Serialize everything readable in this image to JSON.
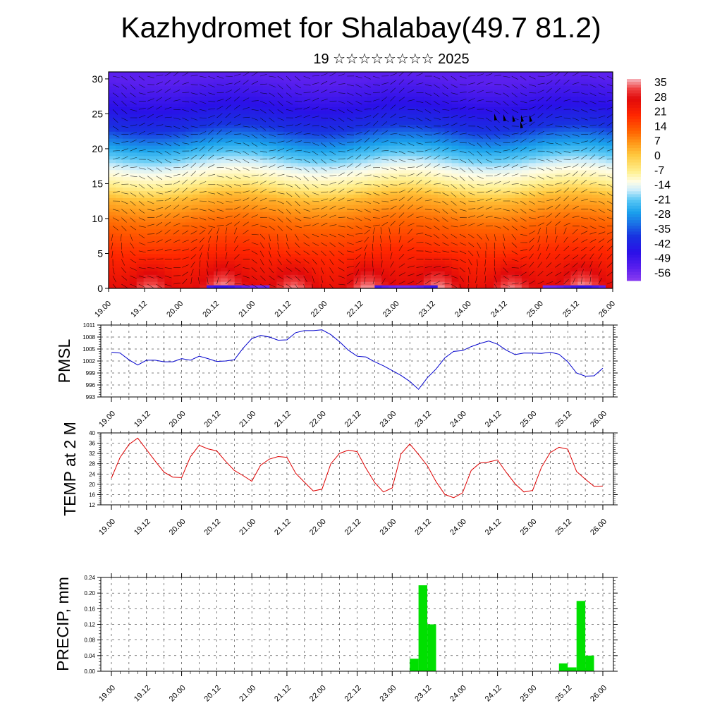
{
  "title": "Kazhydromet for Shalabay(49.7 81.2)",
  "subtitle": "19 ☆☆☆☆☆☆☆☆ 2025",
  "x_tick_labels": [
    "19.00",
    "19.12",
    "20.00",
    "20.12",
    "21.00",
    "21.12",
    "22.00",
    "22.12",
    "23.00",
    "23.12",
    "24.00",
    "24.12",
    "25.00",
    "25.12",
    "26.00"
  ],
  "colors": {
    "pmsl_line": "#0000cc",
    "temp_line": "#dd0000",
    "precip_bar": "#00e000",
    "grid": "#000000"
  },
  "chart_data": [
    {
      "type": "heatmap",
      "title": "",
      "ylabel": "",
      "ylim": [
        0,
        30
      ],
      "y_ticks": [
        0,
        5,
        10,
        15,
        20,
        25,
        30
      ],
      "x_range": [
        0,
        168
      ],
      "colorbar": {
        "labels": [
          "35",
          "28",
          "21",
          "14",
          "7",
          "0",
          "-7",
          "-14",
          "-21",
          "-28",
          "-35",
          "-42",
          "-49",
          "-56"
        ],
        "stops": [
          {
            "v": 38,
            "c": "#f6b8c0"
          },
          {
            "v": 33,
            "c": "#ef4040"
          },
          {
            "v": 28,
            "c": "#e10a0a"
          },
          {
            "v": 20,
            "c": "#ff2600"
          },
          {
            "v": 12,
            "c": "#ff6200"
          },
          {
            "v": 6,
            "c": "#ff9a1a"
          },
          {
            "v": 0,
            "c": "#ffc940"
          },
          {
            "v": -8,
            "c": "#fff090"
          },
          {
            "v": -13,
            "c": "#fffde6"
          },
          {
            "v": -17,
            "c": "#cfeefa"
          },
          {
            "v": -22,
            "c": "#5ac8f5"
          },
          {
            "v": -28,
            "c": "#1aa2ec"
          },
          {
            "v": -34,
            "c": "#1a6fe6"
          },
          {
            "v": -40,
            "c": "#1833e0"
          },
          {
            "v": -48,
            "c": "#2a10e8"
          },
          {
            "v": -56,
            "c": "#5b20ee"
          },
          {
            "v": -62,
            "c": "#8a3cf0"
          }
        ]
      },
      "temperature_profile_by_height": [
        {
          "h": 0,
          "t": 30
        },
        {
          "h": 5,
          "t": 20
        },
        {
          "h": 10,
          "t": 10
        },
        {
          "h": 13,
          "t": 2
        },
        {
          "h": 15,
          "t": -8
        },
        {
          "h": 17,
          "t": -14
        },
        {
          "h": 20,
          "t": -26
        },
        {
          "h": 23,
          "t": -40
        },
        {
          "h": 26,
          "t": -48
        },
        {
          "h": 30,
          "t": -56
        }
      ]
    },
    {
      "type": "line",
      "series_label": "PMSL",
      "ylabel": "PMSL",
      "ylim": [
        993,
        1011
      ],
      "y_ticks": [
        993,
        996,
        999,
        1002,
        1005,
        1008,
        1011
      ],
      "x": [
        0,
        3,
        6,
        9,
        12,
        15,
        18,
        21,
        24,
        27,
        30,
        33,
        36,
        39,
        42,
        45,
        48,
        51,
        54,
        57,
        60,
        63,
        66,
        69,
        72,
        75,
        78,
        81,
        84,
        87,
        90,
        93,
        96,
        99,
        102,
        105,
        108,
        111,
        114,
        117,
        120,
        123,
        126,
        129,
        132,
        135,
        138,
        141,
        144,
        147,
        150,
        153,
        156,
        159,
        162,
        165,
        168
      ],
      "values": [
        1004.2,
        1004,
        1002.3,
        1001,
        1002.2,
        1002.2,
        1001.8,
        1001.8,
        1002.6,
        1002.2,
        1003.2,
        1002.6,
        1001.9,
        1002,
        1002.3,
        1005.2,
        1007.6,
        1008.4,
        1008,
        1007.2,
        1007.3,
        1009.1,
        1009.6,
        1009.6,
        1009.8,
        1008.6,
        1006.8,
        1004.7,
        1003.2,
        1003,
        1001.8,
        1000.8,
        999.6,
        998.4,
        996.9,
        994.9,
        997.8,
        1000,
        1002.8,
        1004.4,
        1004.6,
        1005.6,
        1006.4,
        1007,
        1006.2,
        1004.7,
        1003.6,
        1004,
        1004,
        1003.9,
        1004.2,
        1003.7,
        1001.8,
        999,
        998.2,
        998.3,
        1000.2
      ]
    },
    {
      "type": "line",
      "series_label": "TEMP at 2 M",
      "ylabel": "TEMP at 2 M",
      "ylim": [
        12,
        40
      ],
      "y_ticks": [
        12,
        16,
        20,
        24,
        28,
        32,
        36,
        40
      ],
      "x": [
        0,
        3,
        6,
        9,
        12,
        15,
        18,
        21,
        24,
        27,
        30,
        33,
        36,
        39,
        42,
        45,
        48,
        51,
        54,
        57,
        60,
        63,
        66,
        69,
        72,
        75,
        78,
        81,
        84,
        87,
        90,
        93,
        96,
        99,
        102,
        105,
        108,
        111,
        114,
        117,
        120,
        123,
        126,
        129,
        132,
        135,
        138,
        141,
        144,
        147,
        150,
        153,
        156,
        159,
        162,
        165,
        168
      ],
      "values": [
        22.4,
        30.5,
        35.5,
        38,
        33.5,
        29,
        24.7,
        22.8,
        22.6,
        30.7,
        35.2,
        33.8,
        33,
        29,
        25.4,
        23.4,
        21.2,
        27.4,
        29.8,
        30.8,
        30.5,
        24.3,
        20.8,
        17.4,
        18.1,
        28,
        32,
        33.3,
        32.7,
        26.3,
        20.7,
        17,
        18.6,
        31.8,
        35.7,
        31.6,
        27.2,
        21,
        16,
        14.8,
        16.6,
        25.4,
        28.3,
        28.7,
        29.5,
        24.6,
        20.2,
        17,
        17.6,
        26.6,
        32.3,
        34.4,
        33.7,
        25,
        22,
        19.2,
        19.3
      ]
    },
    {
      "type": "bar",
      "series_label": "PRECIP, mm",
      "ylabel": "PRECIP, mm",
      "ylim": [
        0,
        0.24
      ],
      "y_ticks": [
        "0.00",
        "0.04",
        "0.08",
        "0.12",
        "0.16",
        "0.20",
        "0.24"
      ],
      "x": [
        105,
        108,
        111,
        156,
        159,
        162,
        165
      ],
      "values": [
        0.032,
        0.22,
        0.12,
        0.02,
        0.01,
        0.18,
        0.04
      ],
      "bar_width": 3
    }
  ]
}
